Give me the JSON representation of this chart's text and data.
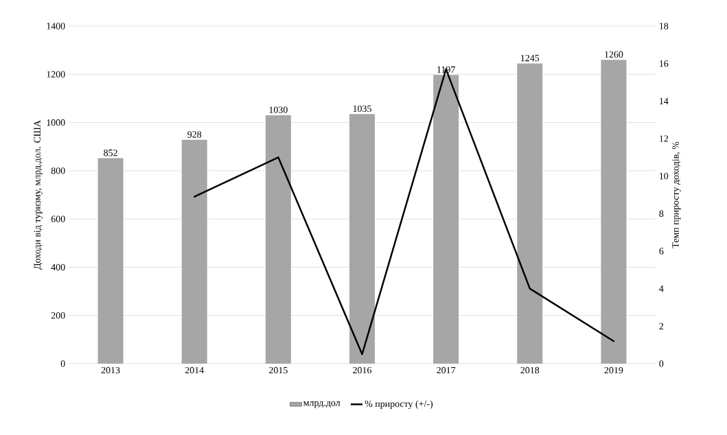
{
  "chart_data": {
    "type": "bar",
    "categories": [
      "2013",
      "2014",
      "2015",
      "2016",
      "2017",
      "2018",
      "2019"
    ],
    "series": [
      {
        "name": "млрд.дол",
        "color": "#a6a6a6",
        "values": [
          852,
          928,
          1030,
          1035,
          1197,
          1245,
          1260
        ],
        "value_labels": [
          "852",
          "928",
          "1030",
          "1035",
          "1197",
          "1245",
          "1260"
        ]
      },
      {
        "name": "% приросту (+/-)",
        "type": "line",
        "axis": "y2",
        "color": "#000000",
        "values": [
          null,
          8.9,
          11.0,
          0.5,
          15.7,
          4.0,
          1.2
        ]
      }
    ],
    "ylabel": "Доходи від туризму, млрд.дол. США",
    "y2label": "Темп приросту доходів, %",
    "ylim": [
      0,
      1400
    ],
    "yticks": [
      0,
      200,
      400,
      600,
      800,
      1000,
      1200,
      1400
    ],
    "y2lim": [
      0,
      18
    ],
    "y2ticks": [
      0,
      2,
      4,
      6,
      8,
      10,
      12,
      14,
      16,
      18
    ],
    "grid": "y",
    "legend": "bottom"
  }
}
